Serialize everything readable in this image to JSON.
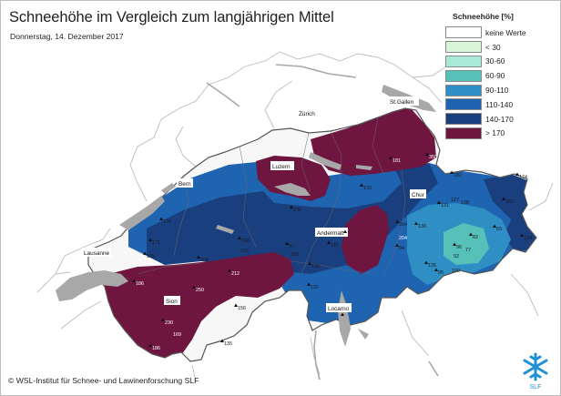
{
  "title": "Schneehöhe im Vergleich zum langjährigen Mittel",
  "subtitle": "Donnerstag, 14. Dezember 2017",
  "copyright": "© WSL-Institut für Schnee- und Lawinenforschung SLF",
  "logo_text": "SLF",
  "legend": {
    "title": "Schneehöhe [%]",
    "items": [
      {
        "label": "keine Werte",
        "color": "#ffffff"
      },
      {
        "label": "< 30",
        "color": "#d8f5d8"
      },
      {
        "label": "30-60",
        "color": "#a6ead7"
      },
      {
        "label": "60-90",
        "color": "#55c1b9"
      },
      {
        "label": "90-110",
        "color": "#2f8fc4"
      },
      {
        "label": "110-140",
        "color": "#1f64b0"
      },
      {
        "label": "140-170",
        "color": "#1a3f7e"
      },
      {
        "label": "> 170",
        "color": "#6e1540"
      }
    ]
  },
  "colors": {
    "land_no_data": "#f7f7f7",
    "border": "#555555",
    "lake": "#a8a8a8",
    "above_170": "#6e1540",
    "range_140_170": "#1a3f7e",
    "range_110_140": "#1f64b0",
    "range_90_110": "#2f8fc4",
    "range_60_90": "#55c1b9"
  },
  "cities": [
    "St.Gallen",
    "Zürich",
    "Luzern",
    "Bern",
    "Chur",
    "Andermatt",
    "Lausanne",
    "Sion",
    "Locarno"
  ],
  "stations": [
    {
      "name": "St.Gallen",
      "value": "",
      "icon": "triangle"
    }
  ],
  "station_values": [
    "350",
    "181",
    "182",
    "174",
    "204",
    "133",
    "136",
    "131",
    "127",
    "128",
    "181",
    "115",
    "176",
    "171",
    "160",
    "142",
    "105",
    "104",
    "97",
    "168",
    "130",
    "204",
    "84",
    "82",
    "83",
    "134",
    "96",
    "77",
    "92",
    "135",
    "95",
    "100",
    "212",
    "120",
    "110",
    "186",
    "250",
    "156",
    "230",
    "169",
    "135",
    "186"
  ]
}
